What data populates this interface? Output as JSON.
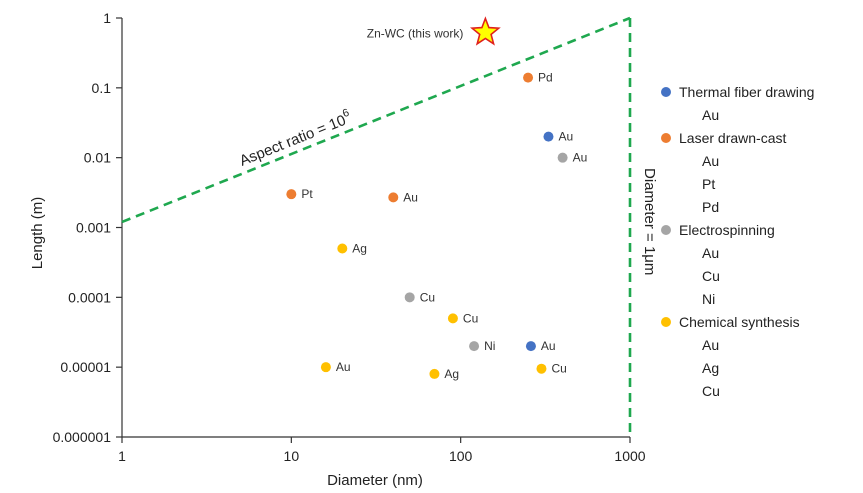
{
  "chart_data": {
    "type": "scatter",
    "xlabel": "Diameter (nm)",
    "ylabel": "Length (m)",
    "xscale": "log",
    "yscale": "log",
    "xlim": [
      1,
      1000
    ],
    "ylim": [
      1e-06,
      1
    ],
    "grid": false,
    "legend_position": "right",
    "x_ticks": [
      "1",
      "10",
      "100",
      "1000"
    ],
    "y_ticks": [
      "0.000001",
      "0.00001",
      "0.0001",
      "0.001",
      "0.01",
      "0.1",
      "1"
    ],
    "colors": {
      "thermal": "#4472c4",
      "laser": "#ed7d31",
      "electrospinning": "#a5a5a5",
      "chemical": "#ffc000",
      "guides": "#1fa84f",
      "star_fill": "#ffff00",
      "star_stroke": "#e0201b"
    },
    "series": [
      {
        "name": "Thermal fiber drawing",
        "color_key": "thermal",
        "sub": [
          "Au"
        ],
        "points": [
          {
            "x": 330,
            "y": 0.02,
            "label": "Au"
          },
          {
            "x": 260,
            "y": 2e-05,
            "label": "Au"
          }
        ]
      },
      {
        "name": "Laser drawn-cast",
        "color_key": "laser",
        "sub": [
          "Au",
          "Pt",
          "Pd"
        ],
        "points": [
          {
            "x": 40,
            "y": 0.0027,
            "label": "Au"
          },
          {
            "x": 10,
            "y": 0.003,
            "label": "Pt"
          },
          {
            "x": 250,
            "y": 0.14,
            "label": "Pd"
          }
        ]
      },
      {
        "name": "Electrospinning",
        "color_key": "electrospinning",
        "sub": [
          "Au",
          "Cu",
          "Ni"
        ],
        "points": [
          {
            "x": 400,
            "y": 0.01,
            "label": "Au"
          },
          {
            "x": 50,
            "y": 0.0001,
            "label": "Cu"
          },
          {
            "x": 120,
            "y": 2e-05,
            "label": "Ni"
          }
        ]
      },
      {
        "name": "Chemical synthesis",
        "color_key": "chemical",
        "sub": [
          "Au",
          "Ag",
          "Cu"
        ],
        "points": [
          {
            "x": 16,
            "y": 1e-05,
            "label": "Au"
          },
          {
            "x": 20,
            "y": 0.0005,
            "label": "Ag"
          },
          {
            "x": 70,
            "y": 8e-06,
            "label": "Ag"
          },
          {
            "x": 90,
            "y": 5e-05,
            "label": "Cu"
          },
          {
            "x": 300,
            "y": 9.5e-06,
            "label": "Cu"
          }
        ]
      }
    ],
    "highlight": {
      "x": 140,
      "y": 0.62,
      "label": "Zn-WC (this work)"
    },
    "annotations": {
      "aspect_ratio_base": "Aspect ratio = 10",
      "aspect_ratio_exp": "6",
      "diameter_limit": "Diameter = 1μm"
    }
  }
}
